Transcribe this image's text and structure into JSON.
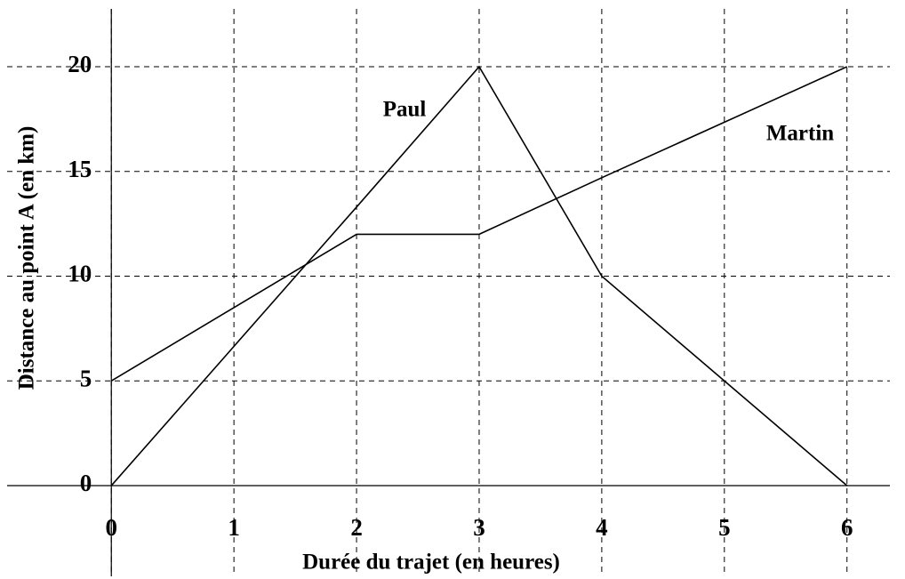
{
  "chart_data": {
    "type": "line",
    "x_label": "Durée du trajet (en heures)",
    "y_label": "Distance au point A (en km)",
    "x": [
      0,
      2,
      3,
      4,
      6
    ],
    "series": [
      {
        "name": "Paul",
        "color": "#000000",
        "values": [
          0,
          13.3,
          20,
          10,
          0
        ]
      },
      {
        "name": "Martin",
        "color": "#000000",
        "values": [
          5,
          12,
          12,
          14.7,
          20
        ]
      }
    ],
    "xlim": [
      -0.85,
      6.35
    ],
    "xticks": [
      0,
      1,
      2,
      3,
      4,
      5,
      6
    ],
    "ylim": [
      -4.33,
      22.76
    ],
    "yticks": [
      0,
      5,
      10,
      15,
      20
    ],
    "grid": true
  }
}
